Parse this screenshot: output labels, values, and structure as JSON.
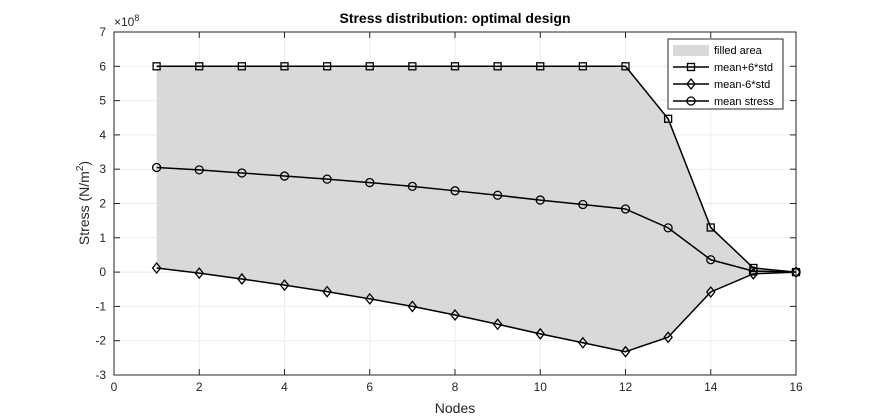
{
  "chart_data": {
    "type": "line",
    "title": "Stress distribution: optimal design",
    "xlabel": "Nodes",
    "ylabel": "Stress (N/m²)",
    "ylabel_base": "Stress (N/m",
    "ylabel_sup": "2",
    "ylabel_end": ")",
    "y_exponent_base": "×10",
    "y_exponent_power": "8",
    "y_multiplier": 100000000,
    "xlim": [
      0,
      16
    ],
    "ylim": [
      -3,
      7
    ],
    "xticks": [
      0,
      2,
      4,
      6,
      8,
      10,
      12,
      14,
      16
    ],
    "yticks": [
      -3,
      -2,
      -1,
      0,
      1,
      2,
      3,
      4,
      5,
      6,
      7
    ],
    "grid": true,
    "legend_position": "top-right",
    "x": [
      1,
      2,
      3,
      4,
      5,
      6,
      7,
      8,
      9,
      10,
      11,
      12,
      13,
      14,
      15,
      16
    ],
    "fill": {
      "name": "filled area",
      "color": "#d9d9d9"
    },
    "series": [
      {
        "name": "mean+6*std",
        "marker": "square",
        "color": "#000000",
        "values": [
          6.0,
          6.0,
          6.0,
          6.0,
          6.0,
          6.0,
          6.0,
          6.0,
          6.0,
          6.0,
          6.0,
          6.0,
          4.47,
          1.3,
          0.12,
          0.0
        ]
      },
      {
        "name": "mean-6*std",
        "marker": "diamond",
        "color": "#000000",
        "values": [
          0.12,
          -0.03,
          -0.2,
          -0.38,
          -0.57,
          -0.78,
          -1.0,
          -1.25,
          -1.52,
          -1.8,
          -2.06,
          -2.32,
          -1.9,
          -0.58,
          -0.05,
          0.0
        ]
      },
      {
        "name": "mean stress",
        "marker": "circle",
        "color": "#000000",
        "values": [
          3.05,
          2.98,
          2.89,
          2.8,
          2.71,
          2.61,
          2.5,
          2.37,
          2.24,
          2.1,
          1.97,
          1.84,
          1.29,
          0.36,
          0.03,
          0.0
        ]
      }
    ]
  }
}
